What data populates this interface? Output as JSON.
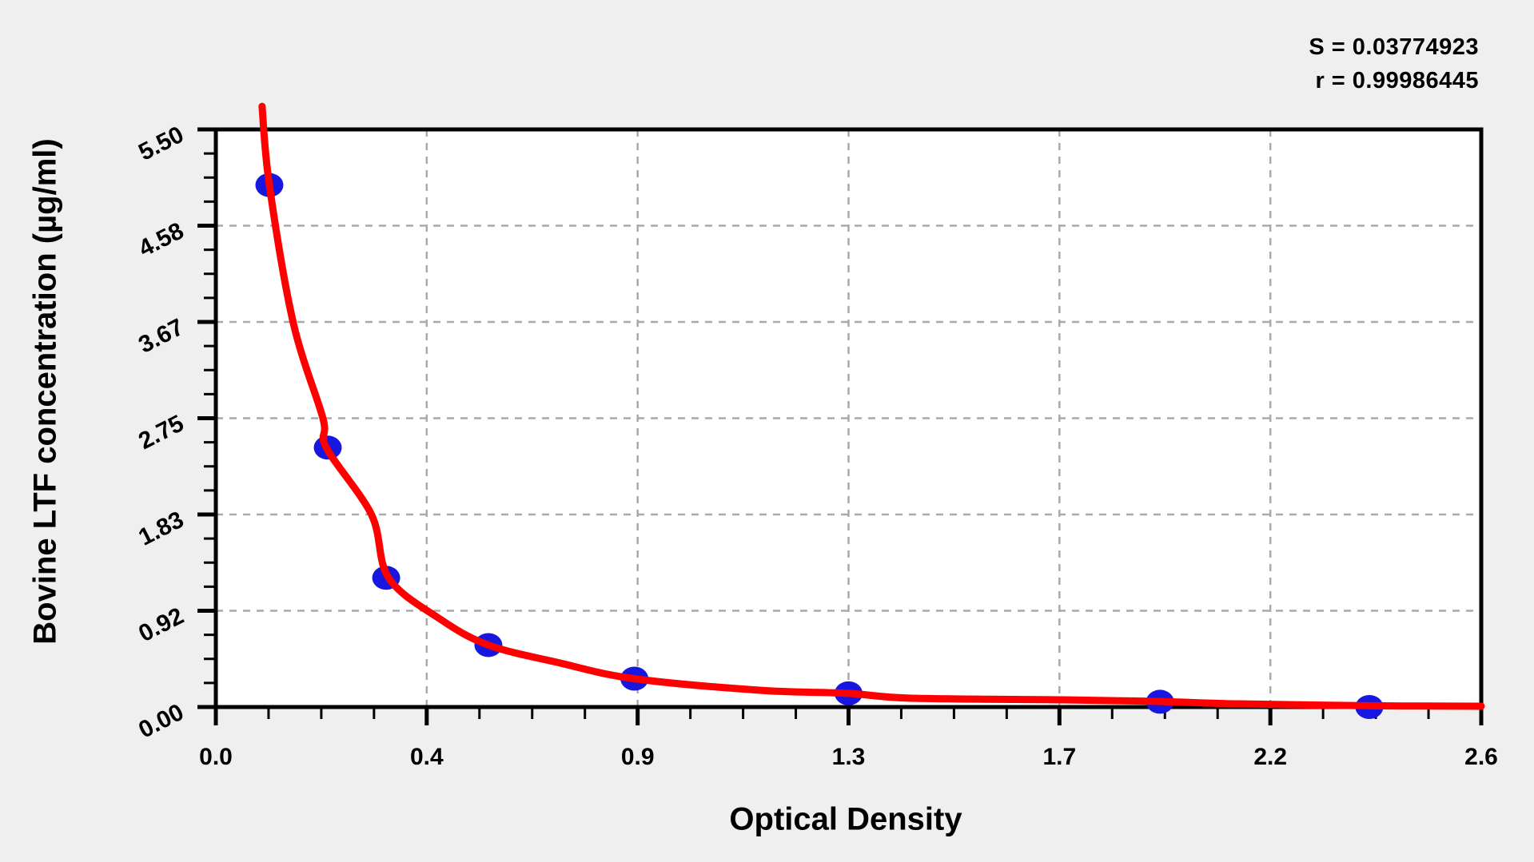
{
  "stats": {
    "line1": "S = 0.03774923",
    "line2": "r = 0.99986445"
  },
  "chart_data": {
    "type": "scatter",
    "title": "",
    "xlabel": "Optical Density",
    "ylabel": "Bovine LTF concentration (µg/ml)",
    "xlim": [
      0,
      2.6
    ],
    "ylim": [
      0,
      5.5
    ],
    "grid": "dashed-at-major-ticks",
    "legend": "none",
    "x_major_ticks": [
      {
        "value": 0.0,
        "label": "0.0"
      },
      {
        "value": 0.4333,
        "label": "0.4"
      },
      {
        "value": 0.8667,
        "label": "0.9"
      },
      {
        "value": 1.3,
        "label": "1.3"
      },
      {
        "value": 1.7333,
        "label": "1.7"
      },
      {
        "value": 2.1667,
        "label": "2.2"
      },
      {
        "value": 2.6,
        "label": "2.6"
      }
    ],
    "y_major_ticks": [
      {
        "value": 0.0,
        "label": "0.00"
      },
      {
        "value": 0.9167,
        "label": "0.92"
      },
      {
        "value": 1.8333,
        "label": "1.83"
      },
      {
        "value": 2.75,
        "label": "2.75"
      },
      {
        "value": 3.6667,
        "label": "3.67"
      },
      {
        "value": 4.5833,
        "label": "4.58"
      },
      {
        "value": 5.5,
        "label": "5.50"
      }
    ],
    "minor_ticks_between_majors": 3,
    "points": [
      {
        "x": 0.11,
        "y": 4.97
      },
      {
        "x": 0.23,
        "y": 2.47
      },
      {
        "x": 0.35,
        "y": 1.23
      },
      {
        "x": 0.56,
        "y": 0.59
      },
      {
        "x": 0.86,
        "y": 0.27
      },
      {
        "x": 1.3,
        "y": 0.13
      },
      {
        "x": 1.94,
        "y": 0.05
      },
      {
        "x": 2.37,
        "y": 0.0
      }
    ],
    "fit_curve": [
      {
        "x": 0.095,
        "y": 5.72
      },
      {
        "x": 0.11,
        "y": 4.97
      },
      {
        "x": 0.159,
        "y": 3.66
      },
      {
        "x": 0.22,
        "y": 2.75
      },
      {
        "x": 0.227,
        "y": 2.47
      },
      {
        "x": 0.32,
        "y": 1.83
      },
      {
        "x": 0.355,
        "y": 1.23
      },
      {
        "x": 0.46,
        "y": 0.84
      },
      {
        "x": 0.56,
        "y": 0.59
      },
      {
        "x": 0.706,
        "y": 0.42
      },
      {
        "x": 0.859,
        "y": 0.27
      },
      {
        "x": 1.117,
        "y": 0.16
      },
      {
        "x": 1.298,
        "y": 0.13
      },
      {
        "x": 1.429,
        "y": 0.084
      },
      {
        "x": 1.741,
        "y": 0.068
      },
      {
        "x": 1.935,
        "y": 0.053
      },
      {
        "x": 2.1,
        "y": 0.03
      },
      {
        "x": 2.374,
        "y": 0.012
      },
      {
        "x": 2.6,
        "y": 0.008
      }
    ],
    "annotations": [
      "S = 0.03774923",
      "r = 0.99986445"
    ],
    "colors": {
      "curve": "#ff0000",
      "points": "#1717e0",
      "grid": "#aaaaaa",
      "frame": "#000000",
      "plot_background": "#ffffff",
      "page_background": "#efefef",
      "text": "#000000"
    }
  }
}
